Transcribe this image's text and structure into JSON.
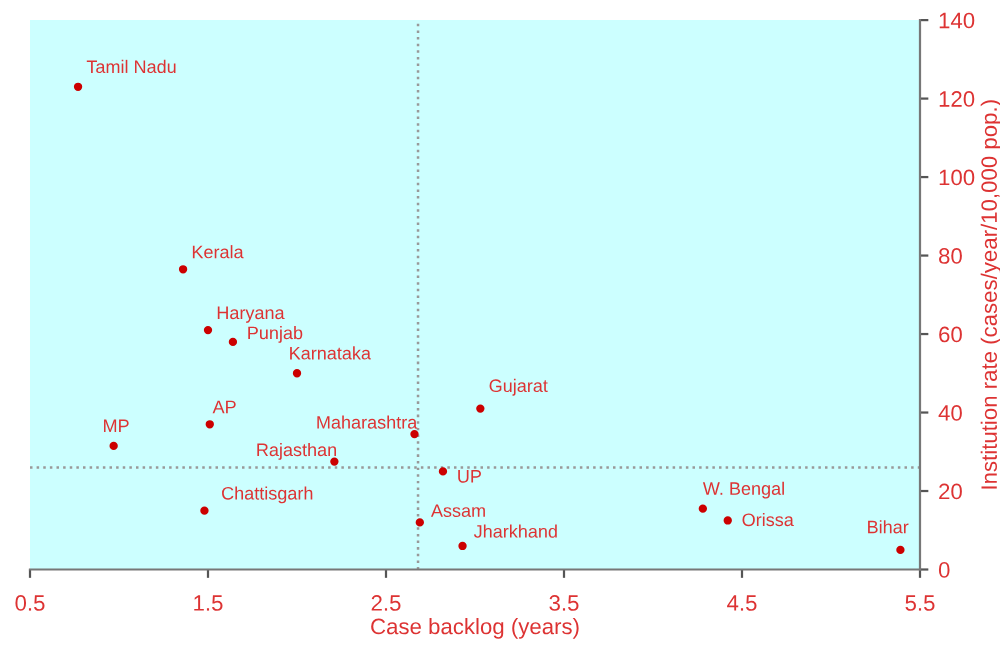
{
  "chart_data": {
    "type": "scatter",
    "xlabel": "Case backlog (years)",
    "ylabel": "Institution rate (cases/year/10,000 pop.)",
    "series": [
      {
        "color": "#cc0000",
        "x": [
          0.77,
          1.36,
          1.5,
          1.64,
          2.0,
          1.51,
          0.97,
          2.66,
          2.21,
          2.82,
          1.48,
          2.69,
          2.93,
          3.03,
          4.28,
          4.42,
          5.39
        ],
        "values": [
          123,
          76.5,
          61,
          58,
          50,
          37,
          31.5,
          34.5,
          27.5,
          25,
          15,
          12,
          6,
          41,
          15.5,
          12.5,
          5
        ]
      }
    ],
    "annotations": [
      {
        "text": "Tamil Nadu",
        "x": 0.77,
        "y": 123
      },
      {
        "text": "Kerala",
        "x": 1.36,
        "y": 76.5
      },
      {
        "text": "Haryana",
        "x": 1.5,
        "y": 61
      },
      {
        "text": "Punjab",
        "x": 1.64,
        "y": 58
      },
      {
        "text": "Karnataka",
        "x": 2.0,
        "y": 50
      },
      {
        "text": "AP",
        "x": 1.51,
        "y": 37
      },
      {
        "text": "MP",
        "x": 0.97,
        "y": 31.5
      },
      {
        "text": "Maharashtra",
        "x": 2.66,
        "y": 34.5
      },
      {
        "text": "Rajasthan",
        "x": 2.21,
        "y": 27.5
      },
      {
        "text": "UP",
        "x": 2.82,
        "y": 25
      },
      {
        "text": "Chattisgarh",
        "x": 1.48,
        "y": 15
      },
      {
        "text": "Assam",
        "x": 2.69,
        "y": 12
      },
      {
        "text": "Jharkhand",
        "x": 2.93,
        "y": 6
      },
      {
        "text": "Gujarat",
        "x": 3.03,
        "y": 41
      },
      {
        "text": "W. Bengal",
        "x": 4.28,
        "y": 15.5
      },
      {
        "text": "Orissa",
        "x": 4.42,
        "y": 12.5
      },
      {
        "text": "Bihar",
        "x": 5.39,
        "y": 5
      }
    ],
    "ref_lines": [
      {
        "axis": "x",
        "value": 2.68,
        "color": "#999999",
        "line_style": "dotted"
      },
      {
        "axis": "y",
        "value": 26,
        "color": "#999999",
        "line_style": "dotted"
      }
    ],
    "xlim": [
      0.5,
      5.5
    ],
    "xticks": [
      0.5,
      1.5,
      2.5,
      3.5,
      4.5,
      5.5
    ],
    "ylim": [
      0,
      140
    ],
    "yticks": [
      0,
      20,
      40,
      60,
      80,
      100,
      120,
      140
    ],
    "grid": false,
    "legend": false,
    "marker": "circle"
  }
}
